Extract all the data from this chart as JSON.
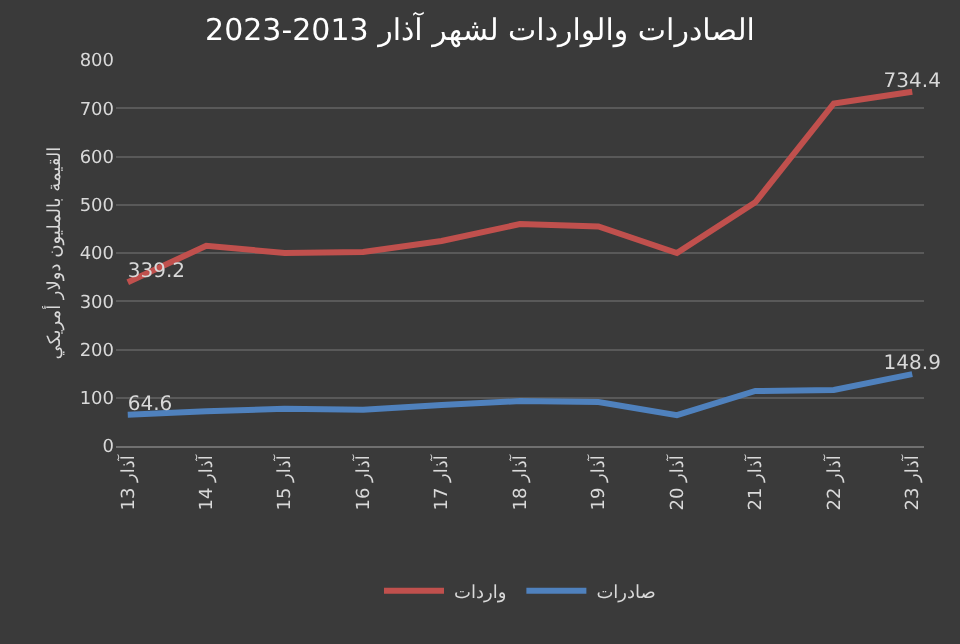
{
  "chart_data": {
    "type": "line",
    "title": "الصادرات والواردات لشهر آذار 2013-2023",
    "ylabel": "القيمة بالمليون دولار أمريكي",
    "categories": [
      "آذار 13",
      "آذار 14",
      "آذار 15",
      "آذار 16",
      "آذار 17",
      "آذار 18",
      "آذار 19",
      "آذار 20",
      "آذار 21",
      "آذار 22",
      "آذار 23"
    ],
    "series": [
      {
        "name": "واردات",
        "color": "#c0504d",
        "values": [
          339.2,
          415,
          400,
          402,
          425,
          460,
          455,
          400,
          505,
          710,
          734.4
        ],
        "value_labels": [
          "339.2",
          null,
          null,
          null,
          null,
          null,
          null,
          null,
          null,
          null,
          "734.4"
        ]
      },
      {
        "name": "صادرات",
        "color": "#4f81bd",
        "values": [
          64.6,
          72,
          77,
          75,
          85,
          93,
          91,
          64,
          114,
          116,
          148.9
        ],
        "value_labels": [
          "64.6",
          null,
          null,
          null,
          null,
          null,
          null,
          null,
          null,
          null,
          "148.9"
        ]
      }
    ],
    "ylim": [
      0,
      800
    ],
    "yticks": [
      0,
      100,
      200,
      300,
      400,
      500,
      600,
      700,
      800
    ],
    "grid": "y",
    "legend": "bottom",
    "marker": "none",
    "line_style": "solid"
  }
}
